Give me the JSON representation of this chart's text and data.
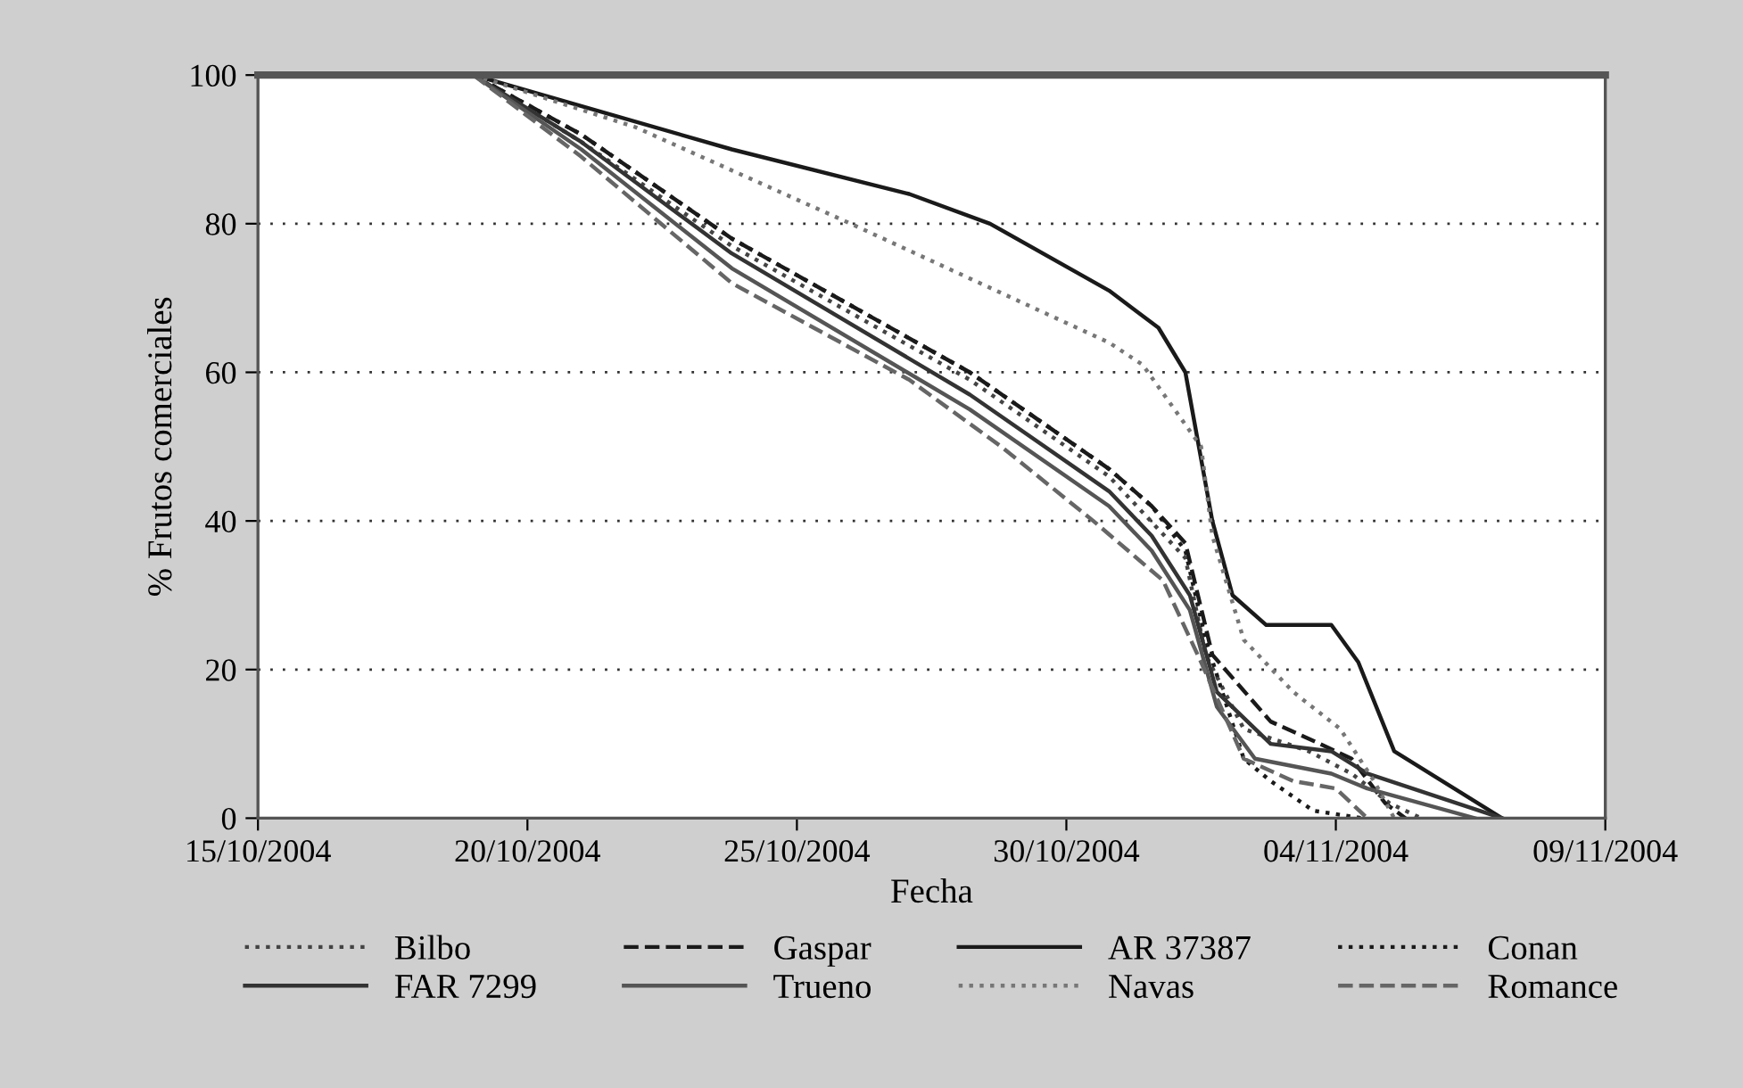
{
  "chart_data": {
    "type": "line",
    "xlabel": "Fecha",
    "ylabel": "% Frutos comerciales",
    "xlim": [
      "2004-10-15",
      "2004-11-09"
    ],
    "xticks": [
      {
        "value": "2004-10-15",
        "label": "15/10/2004"
      },
      {
        "value": "2004-10-20",
        "label": "20/10/2004"
      },
      {
        "value": "2004-10-25",
        "label": "25/10/2004"
      },
      {
        "value": "2004-10-30",
        "label": "30/10/2004"
      },
      {
        "value": "2004-11-04",
        "label": "04/11/2004"
      },
      {
        "value": "2004-11-09",
        "label": "09/11/2004"
      }
    ],
    "ylim": [
      0,
      100
    ],
    "yticks": [
      0,
      20,
      40,
      60,
      80,
      100
    ],
    "grid": "y",
    "legend": "bottom",
    "marker": "none",
    "series": [
      {
        "name": "Bilbo",
        "color": "#444444",
        "line_style": "dotted",
        "x": [
          "2004-10-19T00:00",
          "2004-10-21T00:00",
          "2004-10-23T19:00",
          "2004-10-28T05:00",
          "2004-10-30T19:00",
          "2004-11-01T05:00",
          "2004-11-01T14:00",
          "2004-11-02T07:00",
          "2004-11-03T12:00",
          "2004-11-04T07:00",
          "2004-11-05T00:00",
          "2004-11-05T14:00"
        ],
        "values": [
          100,
          91,
          77,
          59,
          46,
          35,
          22,
          12,
          9,
          6,
          2,
          0
        ]
      },
      {
        "name": "Gaspar",
        "color": "#1a1a1a",
        "line_style": "dashed",
        "x": [
          "2004-10-19T00:00",
          "2004-10-21T00:00",
          "2004-10-23T19:00",
          "2004-10-28T05:00",
          "2004-10-30T19:00",
          "2004-10-31T14:00",
          "2004-11-01T05:00",
          "2004-11-01T17:00",
          "2004-11-02T19:00",
          "2004-11-03T17:00",
          "2004-11-04T07:00",
          "2004-11-04T22:00",
          "2004-11-05T07:00"
        ],
        "values": [
          100,
          92,
          78,
          60,
          47,
          42,
          37,
          22,
          13,
          10,
          8,
          2,
          0
        ]
      },
      {
        "name": "AR 37387",
        "color": "#1a1a1a",
        "line_style": "solid",
        "x": [
          "2004-10-19T00:00",
          "2004-10-23T19:00",
          "2004-10-27T02:00",
          "2004-10-28T14:00",
          "2004-10-30T19:00",
          "2004-10-31T17:00",
          "2004-11-01T05:00",
          "2004-11-01T17:00",
          "2004-11-02T02:00",
          "2004-11-02T17:00",
          "2004-11-03T22:00",
          "2004-11-04T10:00",
          "2004-11-05T02:00",
          "2004-11-07T02:00"
        ],
        "values": [
          100,
          90,
          84,
          80,
          71,
          66,
          60,
          40,
          30,
          26,
          26,
          21,
          9,
          0
        ]
      },
      {
        "name": "Conan",
        "color": "#1a1a1a",
        "line_style": "dotted",
        "x": [
          "2004-10-19T00:00",
          "2004-10-21T00:00",
          "2004-10-23T19:00",
          "2004-10-28T05:00",
          "2004-10-30T19:00",
          "2004-10-31T14:00",
          "2004-11-01T05:00",
          "2004-11-01T14:00",
          "2004-11-02T07:00",
          "2004-11-02T19:00",
          "2004-11-03T14:00",
          "2004-11-04T12:00"
        ],
        "values": [
          100,
          92,
          78,
          60,
          47,
          42,
          36,
          24,
          8,
          5,
          1,
          0
        ]
      },
      {
        "name": "FAR 7299",
        "color": "#333333",
        "line_style": "solid",
        "x": [
          "2004-10-19T00:00",
          "2004-10-21T00:00",
          "2004-10-23T19:00",
          "2004-10-28T05:00",
          "2004-10-30T19:00",
          "2004-10-31T14:00",
          "2004-11-01T07:00",
          "2004-11-01T19:00",
          "2004-11-02T19:00",
          "2004-11-03T22:00",
          "2004-11-04T14:00",
          "2004-11-07T02:00"
        ],
        "values": [
          100,
          91,
          76,
          57,
          44,
          38,
          30,
          17,
          10,
          9,
          6,
          0
        ]
      },
      {
        "name": "Trueno",
        "color": "#555555",
        "line_style": "solid",
        "x": [
          "2004-10-19T00:00",
          "2004-10-21T00:00",
          "2004-10-23T19:00",
          "2004-10-28T05:00",
          "2004-10-30T19:00",
          "2004-10-31T14:00",
          "2004-11-01T07:00",
          "2004-11-01T19:00",
          "2004-11-02T12:00",
          "2004-11-03T22:00",
          "2004-11-04T14:00",
          "2004-11-06T14:00"
        ],
        "values": [
          100,
          90,
          74,
          55,
          42,
          36,
          28,
          15,
          8,
          6,
          4,
          0
        ]
      },
      {
        "name": "Navas",
        "color": "#777777",
        "line_style": "dotted",
        "x": [
          "2004-10-19T00:00",
          "2004-10-22T00:00",
          "2004-10-26T00:00",
          "2004-10-30T19:00",
          "2004-10-31T10:00",
          "2004-11-01T12:00",
          "2004-11-01T17:00",
          "2004-11-02T07:00",
          "2004-11-03T05:00",
          "2004-11-04T02:00",
          "2004-11-04T17:00",
          "2004-11-05T02:00"
        ],
        "values": [
          100,
          93,
          80,
          64,
          61,
          50,
          38,
          24,
          17,
          12,
          5,
          0
        ]
      },
      {
        "name": "Romance",
        "color": "#666666",
        "line_style": "dashed",
        "x": [
          "2004-10-19T00:00",
          "2004-10-21T00:00",
          "2004-10-23T19:00",
          "2004-10-27T02:00",
          "2004-10-28T19:00",
          "2004-10-30T12:00",
          "2004-10-31T19:00",
          "2004-11-01T12:00",
          "2004-11-02T07:00",
          "2004-11-03T05:00",
          "2004-11-04T00:00",
          "2004-11-04T14:00"
        ],
        "values": [
          100,
          89,
          72,
          59,
          50,
          40,
          32,
          21,
          8,
          5,
          4,
          0
        ]
      }
    ]
  }
}
